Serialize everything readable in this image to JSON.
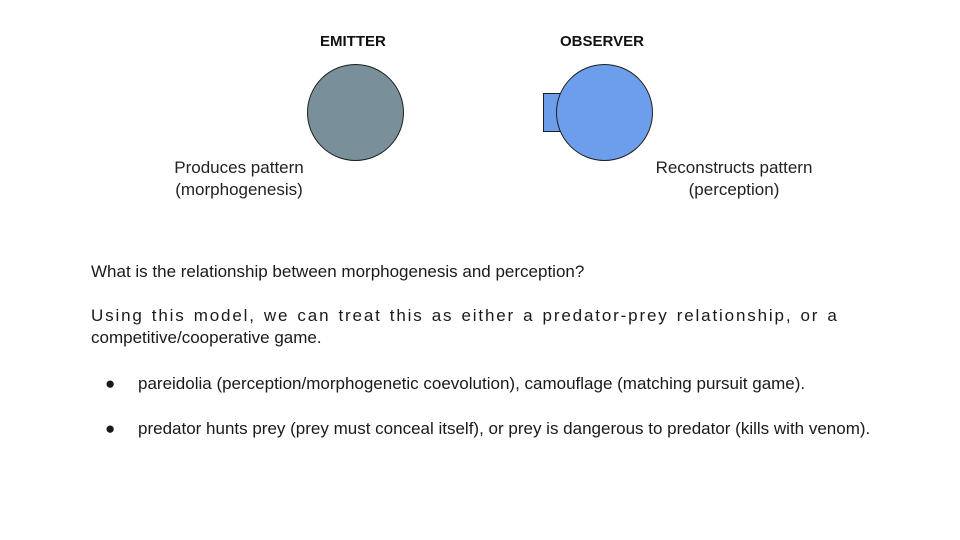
{
  "diagram": {
    "emitter": {
      "heading": "EMITTER",
      "caption_line1": "Produces pattern",
      "caption_line2": "(morphogenesis)",
      "color": "#798f99"
    },
    "observer": {
      "heading": "OBSERVER",
      "caption_line1": "Reconstructs pattern",
      "caption_line2": "(perception)",
      "color": "#6d9eeb"
    }
  },
  "body": {
    "question": "What is the relationship between morphogenesis and perception?",
    "model_line1": "Using this model, we can treat this as either a predator-prey relationship, or a",
    "model_line2": "competitive/cooperative game.",
    "bullets": [
      {
        "marker": "●",
        "text": "pareidolia (perception/morphogenetic coevolution), camouflage (matching pursuit game)."
      },
      {
        "marker": "●",
        "text": "predator hunts prey (prey must conceal itself), or prey is dangerous to predator (kills with venom)."
      }
    ]
  }
}
